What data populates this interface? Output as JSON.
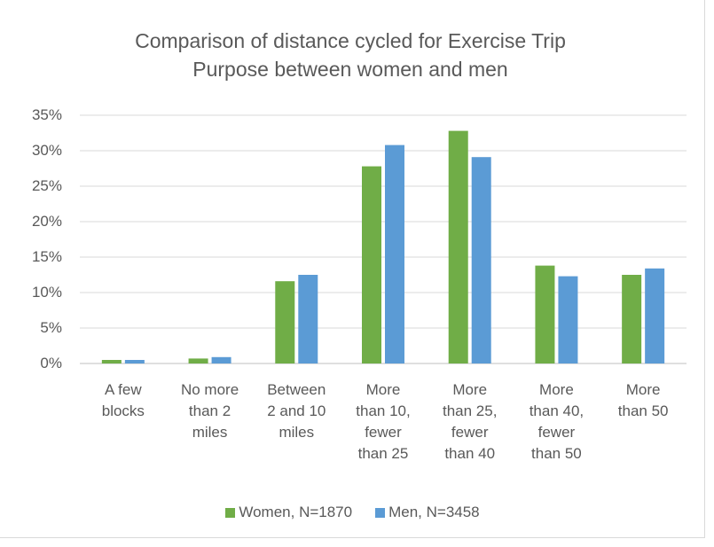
{
  "chart_data": {
    "type": "bar",
    "title": "Comparison of distance cycled for Exercise Trip Purpose between women and men",
    "categories": [
      "A few blocks",
      "No more than 2 miles",
      "Between 2 and 10 miles",
      "More than 10, fewer than 25",
      "More than 25, fewer than 40",
      "More than 40, fewer than 50",
      "More than 50"
    ],
    "series": [
      {
        "name": "Women, N=1870",
        "color": "#70ad47",
        "values": [
          0.5,
          0.7,
          11.6,
          27.8,
          32.8,
          13.8,
          12.5
        ]
      },
      {
        "name": "Men, N=3458",
        "color": "#5b9bd5",
        "values": [
          0.5,
          0.9,
          12.5,
          30.8,
          29.1,
          12.3,
          13.4
        ]
      }
    ],
    "ylim": [
      0,
      35
    ],
    "yticks": [
      {
        "value": 0,
        "label": "0%"
      },
      {
        "value": 5,
        "label": "5%"
      },
      {
        "value": 10,
        "label": "10%"
      },
      {
        "value": 15,
        "label": "15%"
      },
      {
        "value": 20,
        "label": "20%"
      },
      {
        "value": 25,
        "label": "25%"
      },
      {
        "value": 30,
        "label": "30%"
      },
      {
        "value": 35,
        "label": "35%"
      }
    ],
    "grid": true,
    "legend": "bottom"
  }
}
